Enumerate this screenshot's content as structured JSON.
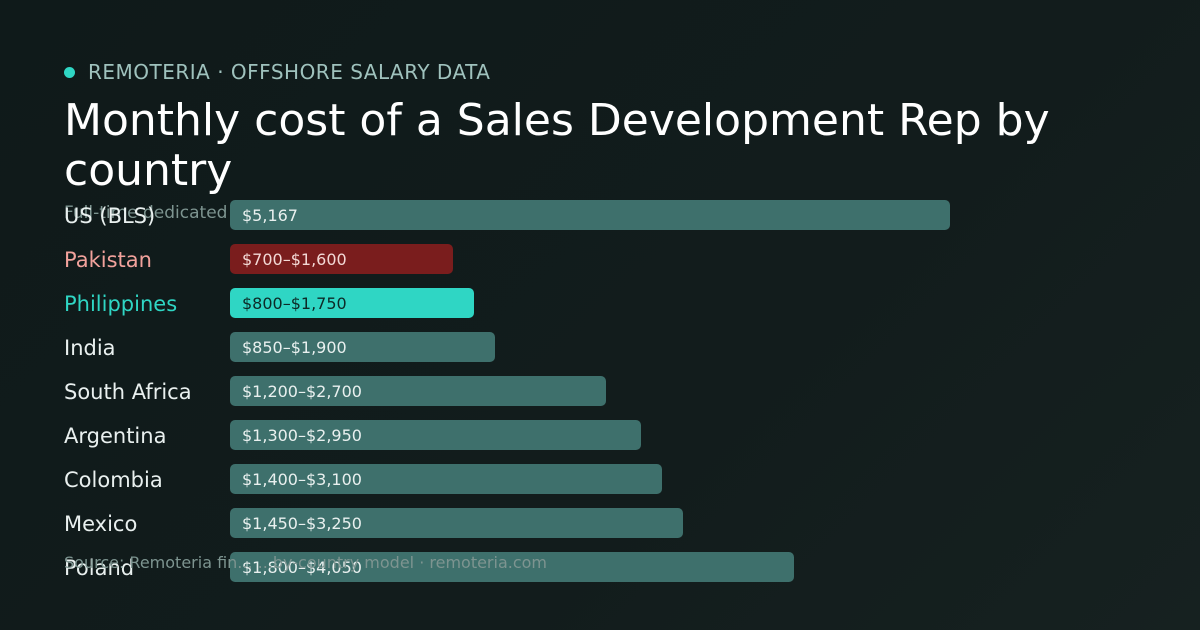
{
  "header": {
    "brand": "REMOTERIA · OFFSHORE SALARY DATA",
    "title": "Monthly cost of a Sales Development Rep by country",
    "subtitle": "Full-time dedicated",
    "footer": "Source: Remoteria fin... ...by-country model · remoteria.com"
  },
  "colors": {
    "background": "#121c1c",
    "accent": "#2fd6c4",
    "us_bar": "#7a1d1d",
    "us_label": "#f2a29c",
    "default_bar": "#3e706c",
    "highlight_bar": "#2fd6c4",
    "highlight_label": "#2fd6c4"
  },
  "chart_data": {
    "type": "bar",
    "orientation": "horizontal",
    "title": "Monthly cost of a Sales Development Rep by country",
    "xlim": [
      0,
      5167
    ],
    "categories": [
      "US (BLS)",
      "Pakistan",
      "Philippines",
      "India",
      "South Africa",
      "Argentina",
      "Colombia",
      "Mexico",
      "Poland"
    ],
    "ranges": [
      {
        "low": 5167,
        "high": 5167
      },
      {
        "low": 700,
        "high": 1600
      },
      {
        "low": 800,
        "high": 1750
      },
      {
        "low": 850,
        "high": 1900
      },
      {
        "low": 1200,
        "high": 2700
      },
      {
        "low": 1300,
        "high": 2950
      },
      {
        "low": 1400,
        "high": 3100
      },
      {
        "low": 1450,
        "high": 3250
      },
      {
        "low": 1800,
        "high": 4050
      }
    ],
    "value_labels": [
      "$5,167",
      "$700–$1,600",
      "$800–$1,750",
      "$850–$1,900",
      "$1,200–$2,700",
      "$1,300–$2,950",
      "$1,400–$3,100",
      "$1,450–$3,250",
      "$1,800–$4,050"
    ],
    "highlight": [
      "normal",
      "baseline",
      "highlight",
      "normal",
      "normal",
      "normal",
      "normal",
      "normal",
      "normal"
    ]
  }
}
